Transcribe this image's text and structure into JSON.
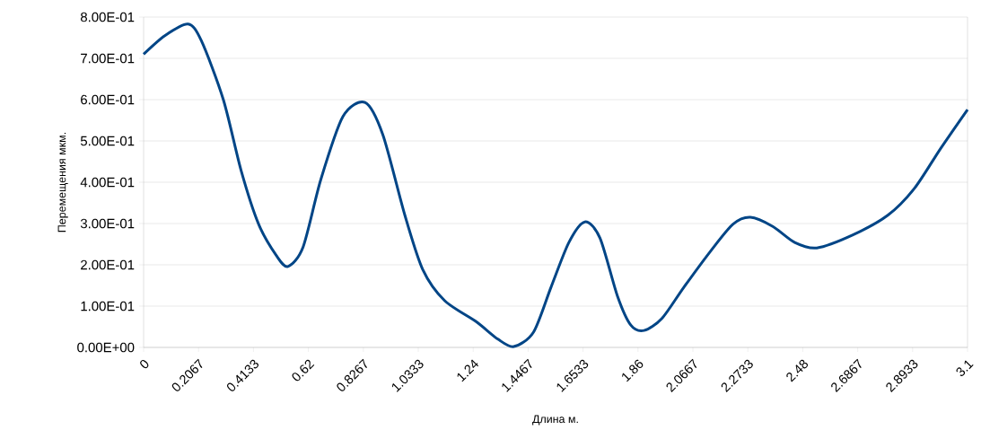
{
  "chart_data": {
    "type": "line",
    "xlabel": "Длина м.",
    "ylabel": "Перемещения мкм.",
    "x": [
      0,
      0.08,
      0.167,
      0.217,
      0.3,
      0.367,
      0.433,
      0.5,
      0.543,
      0.6,
      0.667,
      0.75,
      0.833,
      0.9,
      0.983,
      1.05,
      1.133,
      1.25,
      1.333,
      1.393,
      1.467,
      1.533,
      1.6,
      1.66,
      1.717,
      1.783,
      1.833,
      1.883,
      1.95,
      2.033,
      2.133,
      2.217,
      2.283,
      2.367,
      2.45,
      2.533,
      2.667,
      2.8,
      2.9,
      3.0,
      3.1
    ],
    "series": [
      {
        "color": "#004586",
        "values": [
          0.71,
          0.755,
          0.783,
          0.743,
          0.6,
          0.428,
          0.298,
          0.222,
          0.196,
          0.243,
          0.407,
          0.559,
          0.593,
          0.515,
          0.32,
          0.189,
          0.113,
          0.063,
          0.02,
          0.002,
          0.037,
          0.146,
          0.254,
          0.304,
          0.265,
          0.124,
          0.054,
          0.041,
          0.07,
          0.146,
          0.233,
          0.298,
          0.315,
          0.293,
          0.254,
          0.241,
          0.272,
          0.32,
          0.385,
          0.483,
          0.576
        ]
      }
    ],
    "xlim": [
      0,
      3.1
    ],
    "xticks": [
      0,
      {
        "value": 0.20667,
        "label": "0.2067"
      },
      {
        "value": 0.41333,
        "label": "0.4133"
      },
      0.62,
      {
        "value": 0.82667,
        "label": "0.8267"
      },
      {
        "value": 1.03333,
        "label": "1.0333"
      },
      1.24,
      {
        "value": 1.44667,
        "label": "1.4467"
      },
      {
        "value": 1.65333,
        "label": "1.6533"
      },
      1.86,
      {
        "value": 2.06667,
        "label": "2.0667"
      },
      {
        "value": 2.27333,
        "label": "2.2733"
      },
      2.48,
      {
        "value": 2.68667,
        "label": "2.6867"
      },
      {
        "value": 2.89333,
        "label": "2.8933"
      },
      3.1
    ],
    "ylim": [
      0,
      0.8
    ],
    "yticks": [
      {
        "value": 0,
        "label": "0.00E+00"
      },
      {
        "value": 0.1,
        "label": "1.00E-01"
      },
      {
        "value": 0.2,
        "label": "2.00E-01"
      },
      {
        "value": 0.3,
        "label": "3.00E-01"
      },
      {
        "value": 0.4,
        "label": "4.00E-01"
      },
      {
        "value": 0.5,
        "label": "5.00E-01"
      },
      {
        "value": 0.6,
        "label": "6.00E-01"
      },
      {
        "value": 0.7,
        "label": "7.00E-01"
      },
      {
        "value": 0.8,
        "label": "8.00E-01"
      }
    ],
    "grid": "y",
    "legend": false,
    "marker": "none",
    "line_style": "solid"
  }
}
